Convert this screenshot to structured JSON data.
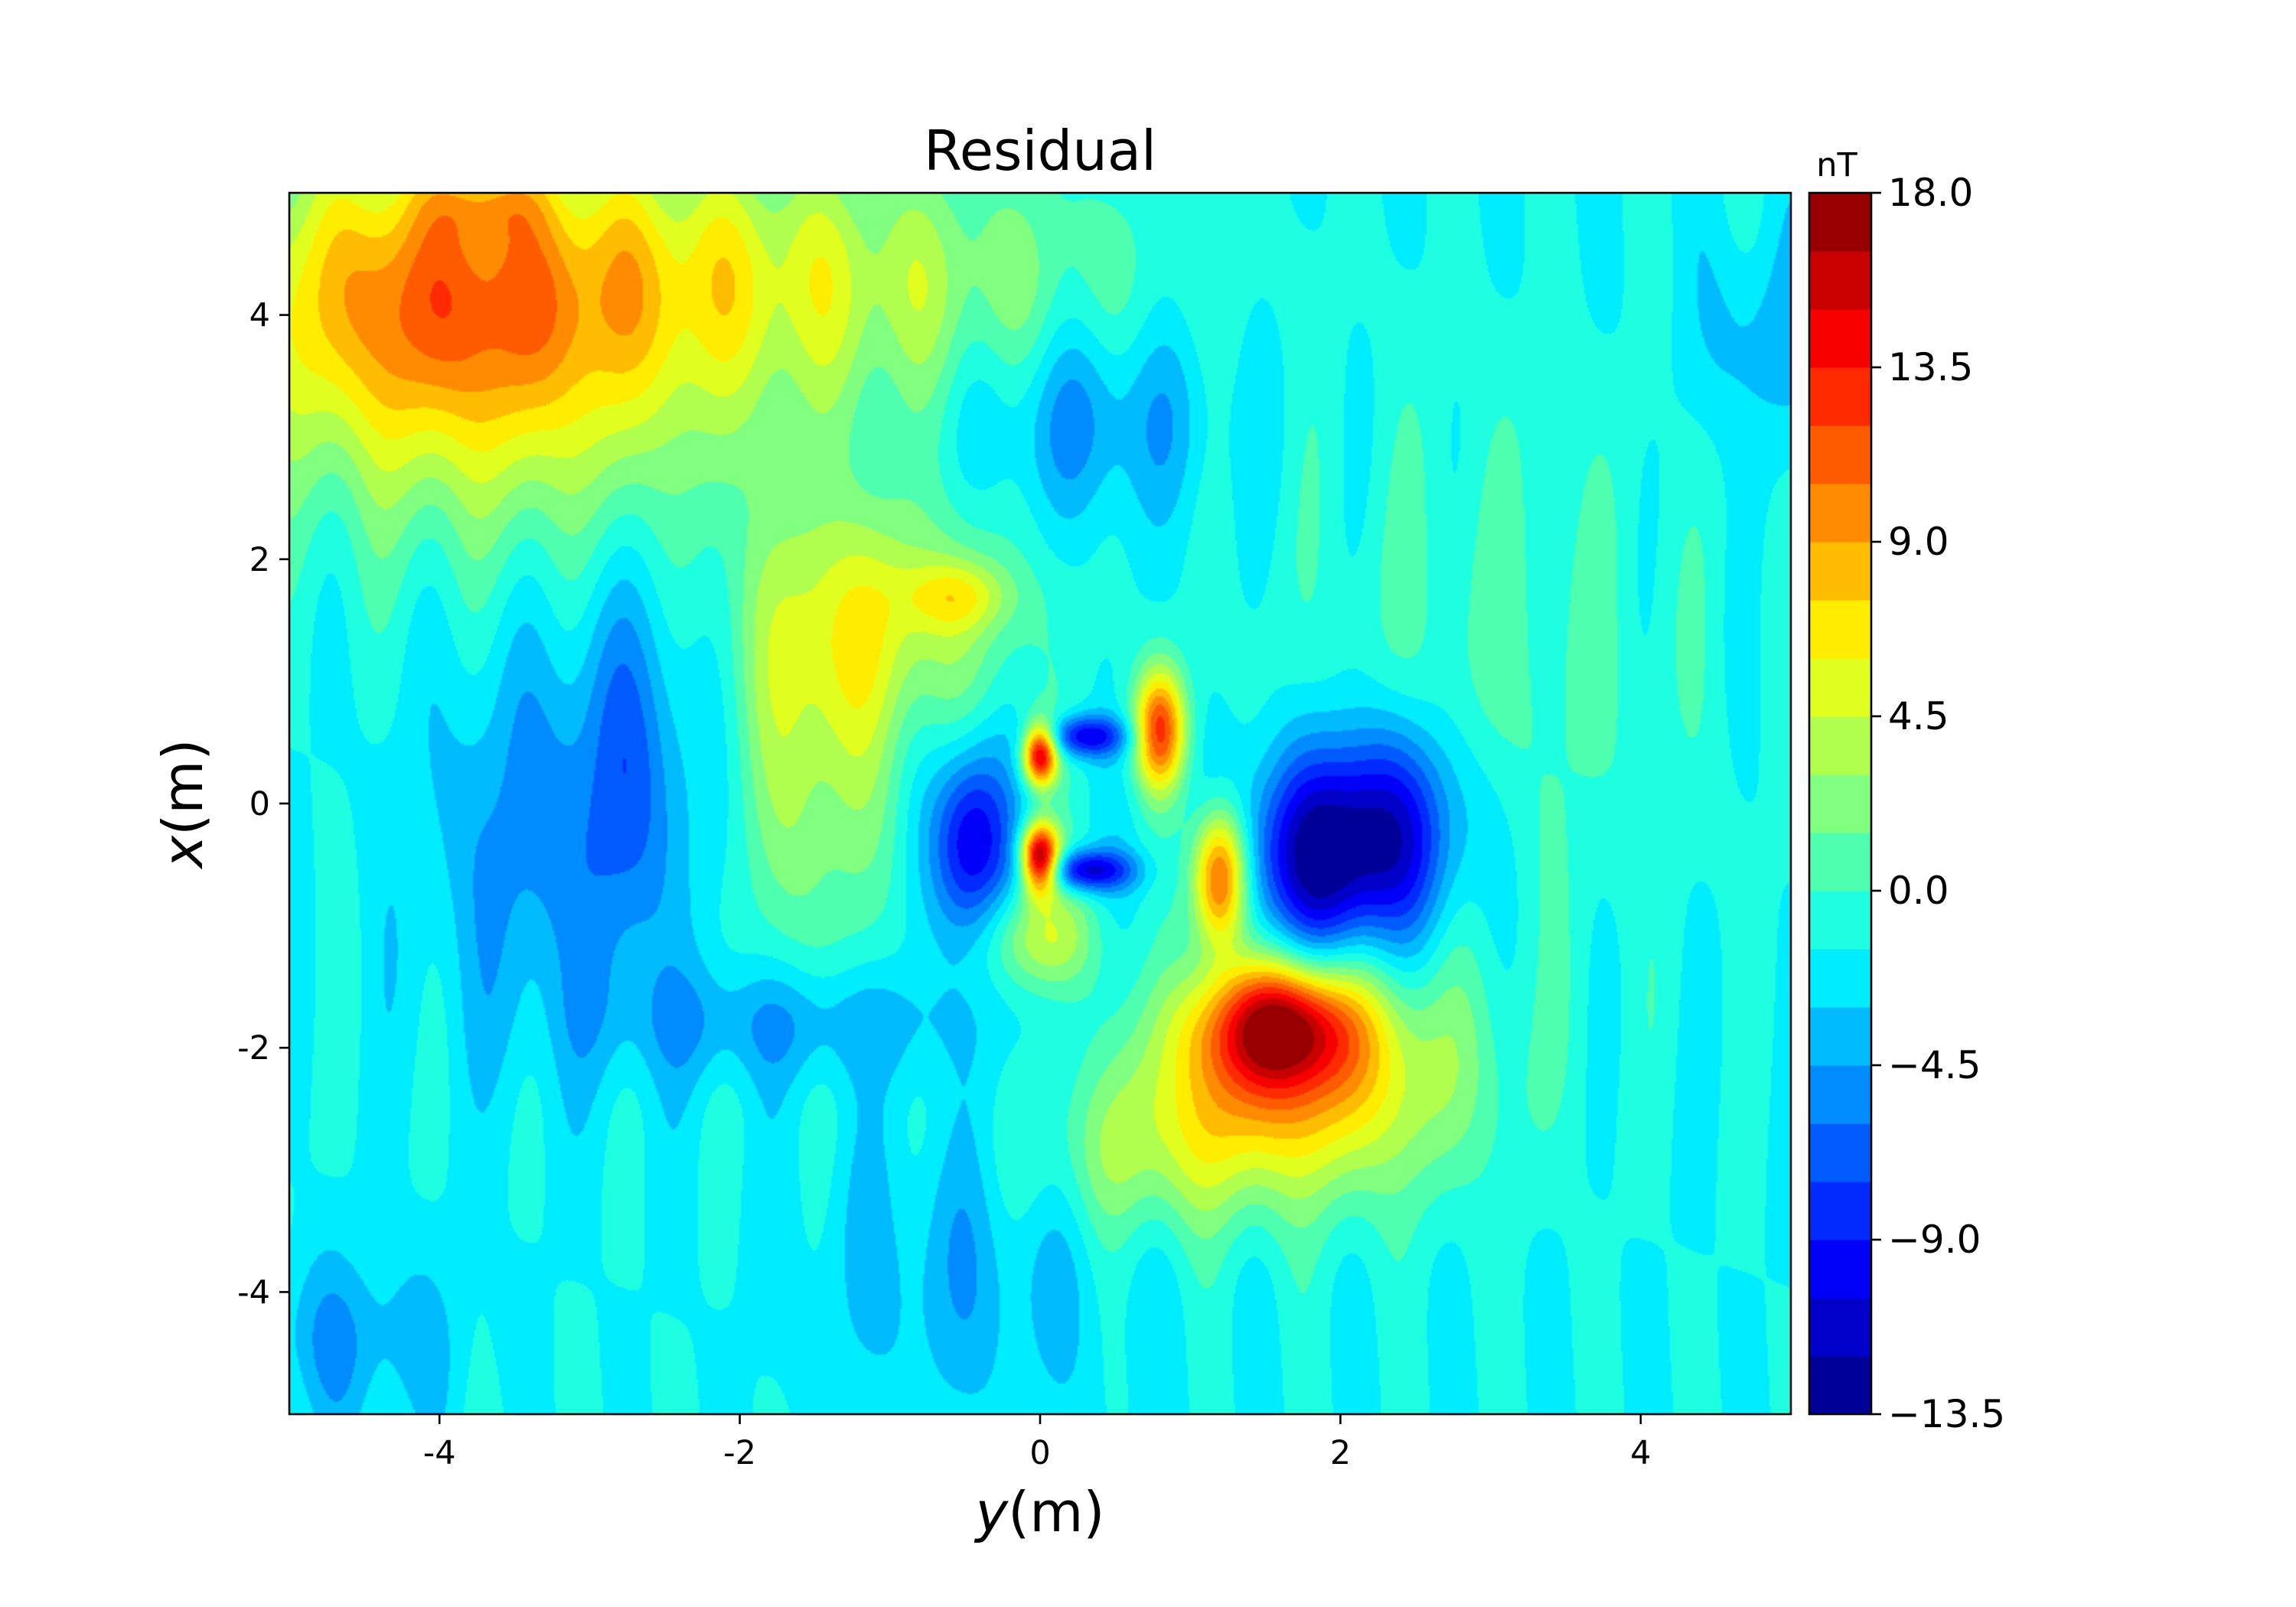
{
  "chart_data": {
    "type": "heatmap",
    "subtype": "filled-contour",
    "title": "Residual",
    "xlabel": {
      "var": "y",
      "unit": "(m)"
    },
    "ylabel": {
      "var": "x",
      "unit": "(m)"
    },
    "xlim": [
      -5,
      5
    ],
    "ylim": [
      -5,
      5
    ],
    "x_ticks": [
      -4,
      -2,
      0,
      2,
      4
    ],
    "y_ticks": [
      -4,
      -2,
      0,
      2,
      4
    ],
    "x_tick_labels": [
      "-4",
      "-2",
      "0",
      "2",
      "4"
    ],
    "y_tick_labels": [
      "-4",
      "-2",
      "0",
      "2",
      "4"
    ],
    "colorbar": {
      "label": "nT",
      "min": -13.5,
      "max": 18.0,
      "step": 1.5,
      "ticks": [
        -13.5,
        -9.0,
        -4.5,
        0.0,
        4.5,
        9.0,
        13.5,
        18.0
      ],
      "tick_labels": [
        "−13.5",
        "−9.0",
        "−4.5",
        "0.0",
        "4.5",
        "9.0",
        "13.5",
        "18.0"
      ],
      "colormap": "jet"
    },
    "background_level": -1.5,
    "features": [
      {
        "y": -4.2,
        "x": 4.2,
        "sx": 0.9,
        "sy": 0.9,
        "amp": 7.5
      },
      {
        "y": -3.4,
        "x": 3.6,
        "sx": 1.2,
        "sy": 1.1,
        "amp": 6.0
      },
      {
        "y": -2.0,
        "x": 4.4,
        "sx": 1.2,
        "sy": 0.7,
        "amp": 4.5
      },
      {
        "y": -0.3,
        "x": 4.0,
        "sx": 1.0,
        "sy": 0.8,
        "amp": 2.5
      },
      {
        "y": -3.7,
        "x": 4.9,
        "sx": 0.25,
        "sy": 0.2,
        "amp": 3.0
      },
      {
        "y": -1.0,
        "x": 1.5,
        "sx": 0.6,
        "sy": 0.7,
        "amp": 5.5
      },
      {
        "y": -0.55,
        "x": 1.7,
        "sx": 0.25,
        "sy": 0.2,
        "amp": 4.5
      },
      {
        "y": -1.5,
        "x": 0.4,
        "sx": 0.35,
        "sy": 1.2,
        "amp": 5.0
      },
      {
        "y": 0.0,
        "x": 0.4,
        "sx": 0.08,
        "sy": 0.18,
        "amp": 17.0
      },
      {
        "y": 0.0,
        "x": -0.45,
        "sx": 0.09,
        "sy": 0.2,
        "amp": 20.0
      },
      {
        "y": 0.0,
        "x": -1.1,
        "sx": 0.25,
        "sy": 0.3,
        "amp": 6.0
      },
      {
        "y": -0.45,
        "x": -0.3,
        "sx": 0.18,
        "sy": 0.55,
        "amp": -10.0
      },
      {
        "y": 0.3,
        "x": 0.55,
        "sx": 0.2,
        "sy": 0.12,
        "amp": -9.0
      },
      {
        "y": 0.3,
        "x": -0.55,
        "sx": 0.22,
        "sy": 0.12,
        "amp": -10.0
      },
      {
        "y": 0.8,
        "x": 0.6,
        "sx": 0.12,
        "sy": 0.35,
        "amp": 13.5
      },
      {
        "y": 1.2,
        "x": -0.6,
        "sx": 0.13,
        "sy": 0.4,
        "amp": 15.5
      },
      {
        "y": 1.6,
        "x": -1.8,
        "sx": 0.35,
        "sy": 0.35,
        "amp": 13.0
      },
      {
        "y": 1.5,
        "x": -2.2,
        "sx": 0.6,
        "sy": 0.6,
        "amp": 7.0
      },
      {
        "y": 2.1,
        "x": -2.3,
        "sx": 0.7,
        "sy": 0.7,
        "amp": 4.5
      },
      {
        "y": 0.7,
        "x": -2.9,
        "sx": 0.6,
        "sy": 0.5,
        "amp": 4.0
      },
      {
        "y": 1.9,
        "x": -0.5,
        "sx": 0.45,
        "sy": 0.6,
        "amp": -10.0
      },
      {
        "y": 2.3,
        "x": -0.1,
        "sx": 0.4,
        "sy": 0.6,
        "amp": -6.5
      },
      {
        "y": -3.4,
        "x": -0.3,
        "sx": 0.5,
        "sy": 1.2,
        "amp": -3.5
      },
      {
        "y": -2.7,
        "x": 0.3,
        "sx": 0.3,
        "sy": 1.2,
        "amp": -4.0
      },
      {
        "y": -1.7,
        "x": -1.8,
        "sx": 0.8,
        "sy": 0.35,
        "amp": -3.5
      },
      {
        "y": -0.5,
        "x": -3.8,
        "sx": 0.7,
        "sy": 0.9,
        "amp": -2.5
      },
      {
        "y": 0.3,
        "x": 3.2,
        "sx": 0.6,
        "sy": 0.6,
        "amp": -4.5
      },
      {
        "y": 3.0,
        "x": 1.0,
        "sx": 1.0,
        "sy": 1.6,
        "amp": 2.0
      },
      {
        "y": -4.6,
        "x": -4.4,
        "sx": 0.5,
        "sy": 0.5,
        "amp": -3.0
      },
      {
        "y": 4.8,
        "x": 3.8,
        "sx": 0.3,
        "sy": 0.6,
        "amp": -2.5
      }
    ]
  }
}
